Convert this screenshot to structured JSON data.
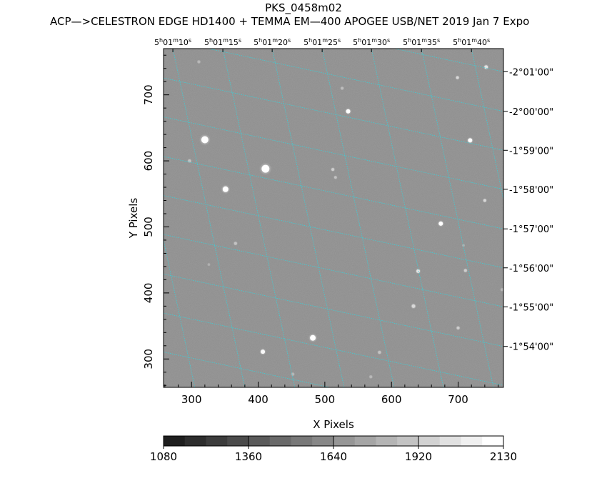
{
  "header": {
    "title": "PKS_0458m02",
    "subtitle": "ACP—>CELESTRON EDGE HD1400 + TEMMA EM—400 APOGEE USB/NET   2019 Jan  7    Expo"
  },
  "chart_data": {
    "type": "heatmap",
    "xlabel": "X Pixels",
    "ylabel": "Y Pixels",
    "xlim": [
      258,
      768
    ],
    "ylim": [
      257,
      770
    ],
    "x_ticks": [
      300,
      400,
      500,
      600,
      700
    ],
    "y_ticks": [
      300,
      400,
      500,
      600,
      700
    ],
    "ra_labels": [
      "5h01m10s",
      "5h01m15s",
      "5h01m20s",
      "5h01m25s",
      "5h01m30s",
      "5h01m35s",
      "5h01m40s"
    ],
    "ra_x_positions": [
      272,
      347,
      421,
      496,
      570,
      645,
      720
    ],
    "dec_labels": [
      "-2°01'00\"",
      "-2°00'00\"",
      "-1°59'00\"",
      "-1°58'00\"",
      "-1°57'00\"",
      "-1°56'00\"",
      "-1°55'00\"",
      "-1°54'00\""
    ],
    "dec_y_positions": [
      735,
      675,
      616,
      557,
      497,
      438,
      379,
      319
    ],
    "grid_rotation_deg": -12,
    "grid_color": "#3ad0d8",
    "background_level": 1600,
    "colorbar": {
      "min": 1080,
      "max": 2130,
      "tick_labels": [
        "1080",
        "1360",
        "1640",
        "1920",
        "2130"
      ],
      "tick_values": [
        1080,
        1360,
        1640,
        1920,
        2130
      ],
      "steps": 16
    },
    "stars": [
      {
        "x": 320,
        "y": 632,
        "r": 5,
        "level": 2130
      },
      {
        "x": 411,
        "y": 588,
        "r": 5.5,
        "level": 2130
      },
      {
        "x": 351,
        "y": 557,
        "r": 4,
        "level": 2130
      },
      {
        "x": 535,
        "y": 675,
        "r": 3,
        "level": 2130
      },
      {
        "x": 482,
        "y": 332,
        "r": 4,
        "level": 2130
      },
      {
        "x": 674,
        "y": 505,
        "r": 3,
        "level": 2130
      },
      {
        "x": 718,
        "y": 631,
        "r": 3,
        "level": 2130
      },
      {
        "x": 407,
        "y": 311,
        "r": 3,
        "level": 2100
      },
      {
        "x": 640,
        "y": 433,
        "r": 2.5,
        "level": 2000
      },
      {
        "x": 633,
        "y": 380,
        "r": 2.5,
        "level": 1950
      },
      {
        "x": 742,
        "y": 742,
        "r": 2.5,
        "level": 2000
      },
      {
        "x": 699,
        "y": 726,
        "r": 2,
        "level": 1950
      },
      {
        "x": 740,
        "y": 540,
        "r": 2,
        "level": 1950
      },
      {
        "x": 711,
        "y": 434,
        "r": 2,
        "level": 1900
      },
      {
        "x": 512,
        "y": 587,
        "r": 2,
        "level": 1900
      },
      {
        "x": 516,
        "y": 575,
        "r": 1.8,
        "level": 1850
      },
      {
        "x": 700,
        "y": 347,
        "r": 2,
        "level": 1900
      },
      {
        "x": 366,
        "y": 475,
        "r": 2,
        "level": 1850
      },
      {
        "x": 297,
        "y": 600,
        "r": 2,
        "level": 1850
      },
      {
        "x": 582,
        "y": 310,
        "r": 2,
        "level": 1850
      },
      {
        "x": 526,
        "y": 710,
        "r": 1.8,
        "level": 1820
      },
      {
        "x": 569,
        "y": 273,
        "r": 1.8,
        "level": 1800
      },
      {
        "x": 452,
        "y": 277,
        "r": 1.8,
        "level": 1800
      },
      {
        "x": 311,
        "y": 750,
        "r": 1.8,
        "level": 1800
      },
      {
        "x": 766,
        "y": 405,
        "r": 1.8,
        "level": 1800
      },
      {
        "x": 326,
        "y": 443,
        "r": 1.5,
        "level": 1760
      },
      {
        "x": 708,
        "y": 472,
        "r": 1.5,
        "level": 1760
      }
    ]
  }
}
